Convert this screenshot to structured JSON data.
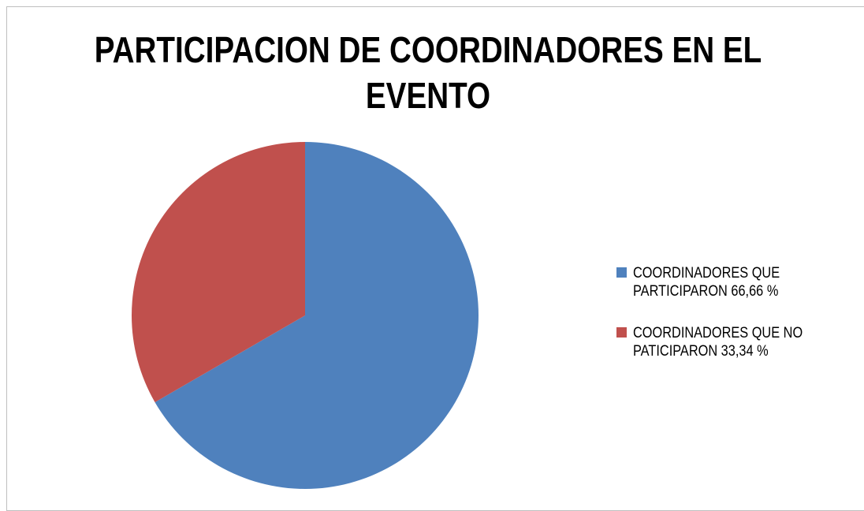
{
  "chart_data": {
    "type": "pie",
    "title": "PARTICIPACION DE  COORDINADORES EN EL EVENTO",
    "categories": [
      "COORDINADORES QUE PARTICIPARON 66,66 %",
      "COORDINADORES QUE NO PATICIPARON 33,34 %"
    ],
    "values": [
      66.66,
      33.34
    ],
    "colors": [
      "#4f81bd",
      "#c0504d"
    ],
    "legend": "right"
  }
}
